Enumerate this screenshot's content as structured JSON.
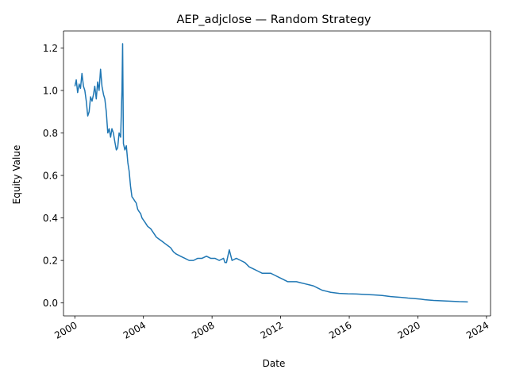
{
  "chart_data": {
    "type": "line",
    "title": "AEP_adjclose — Random Strategy",
    "xlabel": "Date",
    "ylabel": "Equity Value",
    "xlim": [
      "1999-05-05",
      "2024-03-27"
    ],
    "ylim": [
      -0.061,
      1.28
    ],
    "grid": false,
    "x_ticks": [
      "2000",
      "2004",
      "2008",
      "2012",
      "2016",
      "2020",
      "2024"
    ],
    "y_ticks": [
      "0.0",
      "0.2",
      "0.4",
      "0.6",
      "0.8",
      "1.0",
      "1.2"
    ],
    "line_color": "#1f77b4",
    "series": [
      {
        "name": "",
        "x": [
          "2000-01-03",
          "2000-02-01",
          "2000-03-01",
          "2000-04-03",
          "2000-05-01",
          "2000-06-01",
          "2000-07-03",
          "2000-08-01",
          "2000-09-01",
          "2000-10-02",
          "2000-11-01",
          "2000-12-01",
          "2001-01-02",
          "2001-02-01",
          "2001-03-01",
          "2001-04-02",
          "2001-05-01",
          "2001-06-01",
          "2001-07-02",
          "2001-08-01",
          "2001-09-04",
          "2001-10-01",
          "2001-11-01",
          "2001-12-03",
          "2002-01-02",
          "2002-02-01",
          "2002-03-01",
          "2002-04-01",
          "2002-05-01",
          "2002-06-03",
          "2002-07-01",
          "2002-08-01",
          "2002-09-03",
          "2002-10-01",
          "2002-10-15",
          "2002-11-01",
          "2002-12-02",
          "2003-01-02",
          "2003-02-03",
          "2003-03-03",
          "2003-04-01",
          "2003-05-01",
          "2003-06-02",
          "2003-07-01",
          "2003-08-01",
          "2003-09-02",
          "2003-10-01",
          "2003-11-03",
          "2003-12-01",
          "2004-02-02",
          "2004-04-01",
          "2004-06-01",
          "2004-08-02",
          "2004-10-01",
          "2004-12-01",
          "2005-02-01",
          "2005-04-01",
          "2005-06-01",
          "2005-08-01",
          "2005-10-03",
          "2005-12-01",
          "2006-03-01",
          "2006-06-01",
          "2006-09-01",
          "2006-12-01",
          "2007-03-01",
          "2007-06-01",
          "2007-09-04",
          "2007-12-03",
          "2008-03-03",
          "2008-06-02",
          "2008-09-02",
          "2008-10-01",
          "2008-11-03",
          "2009-01-02",
          "2009-03-02",
          "2009-06-01",
          "2009-09-01",
          "2009-12-01",
          "2010-03-01",
          "2010-06-01",
          "2010-09-01",
          "2010-12-01",
          "2011-03-01",
          "2011-06-01",
          "2011-09-01",
          "2011-12-01",
          "2012-03-01",
          "2012-06-01",
          "2012-09-04",
          "2012-12-03",
          "2013-03-01",
          "2013-06-03",
          "2013-09-03",
          "2013-12-02",
          "2014-03-03",
          "2014-06-02",
          "2014-09-02",
          "2014-12-01",
          "2015-06-01",
          "2015-12-01",
          "2016-06-01",
          "2016-12-01",
          "2017-06-01",
          "2017-12-01",
          "2018-06-01",
          "2018-12-03",
          "2019-06-03",
          "2019-12-02",
          "2020-03-02",
          "2020-06-01",
          "2020-12-01",
          "2021-06-01",
          "2021-12-01",
          "2022-06-01",
          "2022-11-30"
        ],
        "y": [
          1.02,
          1.05,
          0.99,
          1.03,
          1.01,
          1.08,
          1.02,
          1.0,
          0.95,
          0.88,
          0.9,
          0.97,
          0.95,
          0.98,
          1.02,
          0.96,
          1.04,
          1.0,
          1.1,
          1.02,
          0.98,
          0.96,
          0.9,
          0.8,
          0.82,
          0.78,
          0.82,
          0.8,
          0.76,
          0.72,
          0.73,
          0.8,
          0.78,
          1.0,
          1.22,
          0.75,
          0.72,
          0.74,
          0.66,
          0.62,
          0.55,
          0.5,
          0.49,
          0.48,
          0.47,
          0.44,
          0.43,
          0.42,
          0.4,
          0.38,
          0.36,
          0.35,
          0.33,
          0.31,
          0.3,
          0.29,
          0.28,
          0.27,
          0.26,
          0.24,
          0.23,
          0.22,
          0.21,
          0.2,
          0.2,
          0.21,
          0.21,
          0.22,
          0.21,
          0.21,
          0.2,
          0.21,
          0.19,
          0.19,
          0.25,
          0.2,
          0.21,
          0.2,
          0.19,
          0.17,
          0.16,
          0.15,
          0.14,
          0.14,
          0.14,
          0.13,
          0.12,
          0.11,
          0.1,
          0.1,
          0.1,
          0.095,
          0.09,
          0.085,
          0.08,
          0.07,
          0.06,
          0.055,
          0.05,
          0.045,
          0.043,
          0.042,
          0.04,
          0.038,
          0.035,
          0.03,
          0.027,
          0.023,
          0.02,
          0.018,
          0.015,
          0.012,
          0.01,
          0.008,
          0.006,
          0.005
        ]
      }
    ]
  }
}
